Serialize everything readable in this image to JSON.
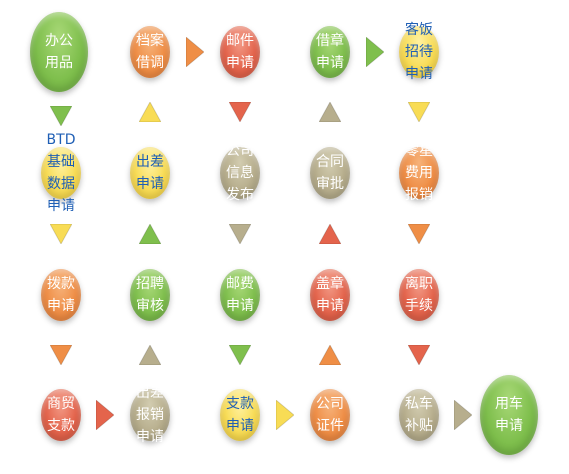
{
  "colors": {
    "green": "#7fbf4d",
    "orange": "#ef8e46",
    "red": "#e4644c",
    "yellow": "#f8dc55",
    "khaki": "#b7ae8d",
    "label_light": "#ffffff",
    "label_blue": "#1f5fb5"
  },
  "nodes": [
    {
      "id": "bangong-yongpin",
      "lines": [
        "办公",
        "用品"
      ],
      "color": "green",
      "text": "light"
    },
    {
      "id": "dangan-jiediao",
      "lines": [
        "档案",
        "借调"
      ],
      "color": "orange",
      "text": "light"
    },
    {
      "id": "youjian-shenqing",
      "lines": [
        "邮件",
        "申请"
      ],
      "color": "red",
      "text": "light"
    },
    {
      "id": "jiezhang-shenqing",
      "lines": [
        "借章",
        "申请"
      ],
      "color": "green",
      "text": "light"
    },
    {
      "id": "kefan-zhaodai-shenqing",
      "lines": [
        "客饭",
        "招待",
        "申请"
      ],
      "color": "yellow",
      "text": "blue"
    },
    {
      "id": "btd-jichu-shuju-shenqing",
      "lines": [
        "BTD",
        "基础",
        "数据",
        "申请"
      ],
      "color": "yellow",
      "text": "blue"
    },
    {
      "id": "chuchai-shenqing",
      "lines": [
        "出差",
        "申请"
      ],
      "color": "yellow",
      "text": "blue"
    },
    {
      "id": "gongsi-xinxi-fabu",
      "lines": [
        "公司",
        "信息",
        "发布"
      ],
      "color": "khaki",
      "text": "light"
    },
    {
      "id": "hetong-shenpi",
      "lines": [
        "合同",
        "审批"
      ],
      "color": "khaki",
      "text": "light"
    },
    {
      "id": "lingxing-feiyong-baoxiao",
      "lines": [
        "零星",
        "费用",
        "报销"
      ],
      "color": "orange",
      "text": "light"
    },
    {
      "id": "bokuan-shenqing",
      "lines": [
        "拨款",
        "申请"
      ],
      "color": "orange",
      "text": "light"
    },
    {
      "id": "zhaopin-shenhe",
      "lines": [
        "招聘",
        "审核"
      ],
      "color": "green",
      "text": "light"
    },
    {
      "id": "youfei-shenqing",
      "lines": [
        "邮费",
        "申请"
      ],
      "color": "green",
      "text": "light"
    },
    {
      "id": "gaizhang-shenqing",
      "lines": [
        "盖章",
        "申请"
      ],
      "color": "red",
      "text": "light"
    },
    {
      "id": "lizhi-shouxu",
      "lines": [
        "离职",
        "手续"
      ],
      "color": "red",
      "text": "light"
    },
    {
      "id": "shangmao-zhikuan",
      "lines": [
        "商贸",
        "支款"
      ],
      "color": "red",
      "text": "light"
    },
    {
      "id": "chuchai-baoxiao-shenqing",
      "lines": [
        "出差",
        "报销",
        "申请"
      ],
      "color": "khaki",
      "text": "light"
    },
    {
      "id": "zhikuan-shenqing",
      "lines": [
        "支款",
        "申请"
      ],
      "color": "yellow",
      "text": "blue"
    },
    {
      "id": "gongsi-zhengjian",
      "lines": [
        "公司",
        "证件"
      ],
      "color": "orange",
      "text": "light"
    },
    {
      "id": "siche-butie",
      "lines": [
        "私车",
        "补贴"
      ],
      "color": "khaki",
      "text": "light"
    },
    {
      "id": "yongche-shenqing",
      "lines": [
        "用车",
        "申请"
      ],
      "color": "green",
      "text": "light"
    }
  ],
  "arrows": [
    {
      "id": "a1",
      "dir": "right",
      "color": "orange"
    },
    {
      "id": "a2",
      "dir": "right",
      "color": "green"
    },
    {
      "id": "a3",
      "dir": "down",
      "color": "green"
    },
    {
      "id": "a4",
      "dir": "up",
      "color": "yellow"
    },
    {
      "id": "a5",
      "dir": "down",
      "color": "red"
    },
    {
      "id": "a6",
      "dir": "up",
      "color": "khaki"
    },
    {
      "id": "a7",
      "dir": "down",
      "color": "yellow"
    },
    {
      "id": "a8",
      "dir": "down",
      "color": "yellow"
    },
    {
      "id": "a9",
      "dir": "up",
      "color": "green"
    },
    {
      "id": "a10",
      "dir": "down",
      "color": "khaki"
    },
    {
      "id": "a11",
      "dir": "up",
      "color": "red"
    },
    {
      "id": "a12",
      "dir": "down",
      "color": "orange"
    },
    {
      "id": "a13",
      "dir": "down",
      "color": "orange"
    },
    {
      "id": "a14",
      "dir": "up",
      "color": "khaki"
    },
    {
      "id": "a15",
      "dir": "down",
      "color": "green"
    },
    {
      "id": "a16",
      "dir": "up",
      "color": "orange"
    },
    {
      "id": "a17",
      "dir": "down",
      "color": "red"
    },
    {
      "id": "a18",
      "dir": "right",
      "color": "red"
    },
    {
      "id": "a19",
      "dir": "right",
      "color": "yellow"
    },
    {
      "id": "a20",
      "dir": "right",
      "color": "khaki"
    }
  ]
}
